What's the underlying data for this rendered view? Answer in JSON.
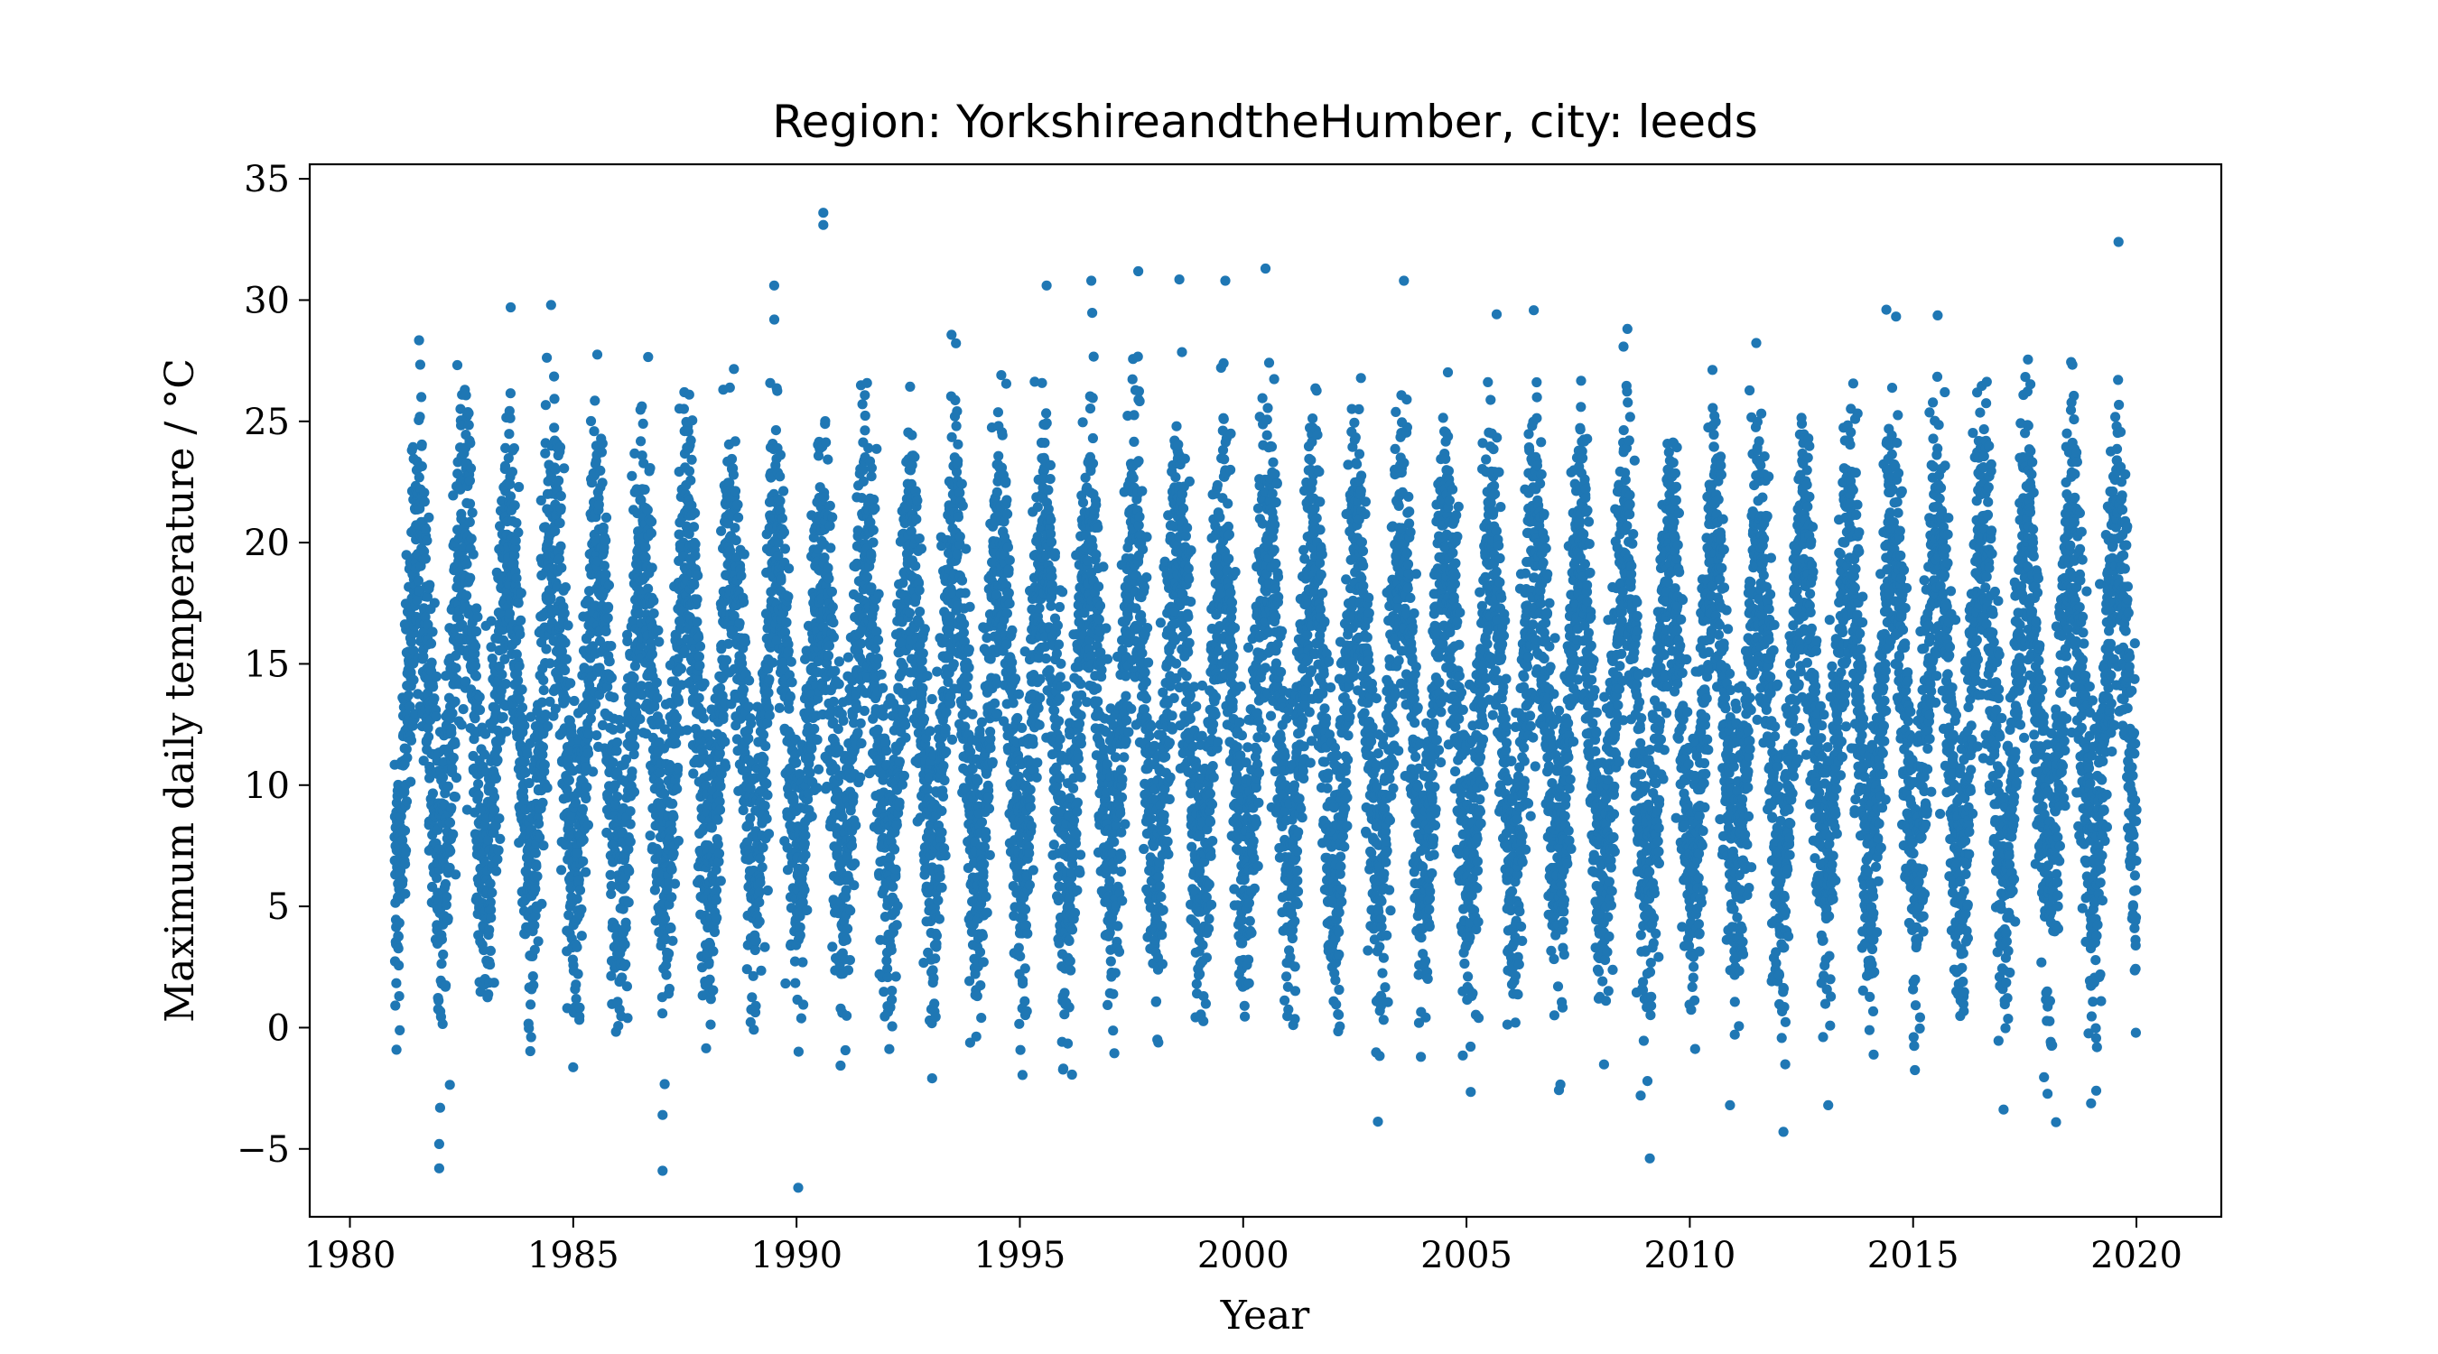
{
  "chart_data": {
    "type": "scatter",
    "title": "Region: YorkshireandtheHumber, city: leeds",
    "xlabel": "Year",
    "ylabel": "Maximum daily temperature / °C",
    "xlim": [
      1979.1,
      2021.9
    ],
    "ylim": [
      -7.8,
      35.6
    ],
    "x_ticks": [
      1980,
      1985,
      1990,
      1995,
      2000,
      2005,
      2010,
      2015,
      2020
    ],
    "y_ticks": [
      -5,
      0,
      5,
      10,
      15,
      20,
      25,
      30,
      35
    ],
    "x_tick_labels": [
      "1980",
      "1985",
      "1990",
      "1995",
      "2000",
      "2005",
      "2010",
      "2015",
      "2020"
    ],
    "y_tick_labels": [
      "−5",
      "0",
      "5",
      "10",
      "15",
      "20",
      "25",
      "30",
      "35"
    ],
    "grid": false,
    "legend": "none",
    "marker_color": "#1f77b4",
    "series": [
      {
        "x_start": 1981.0,
        "x_end": 2020.0,
        "seasonal_model": {
          "mean_c": 13.0,
          "amplitude_c": 7.0,
          "peak_day_of_year": 200,
          "noise_sd_c": 3.2
        },
        "extremes": [
          {
            "x": 1982.0,
            "y": -5.8
          },
          {
            "x": 1982.0,
            "y": -4.8
          },
          {
            "x": 1987.0,
            "y": -5.9
          },
          {
            "x": 1987.0,
            "y": -3.6
          },
          {
            "x": 1983.6,
            "y": 29.7
          },
          {
            "x": 1989.5,
            "y": 30.6
          },
          {
            "x": 1990.6,
            "y": 33.6
          },
          {
            "x": 1990.6,
            "y": 33.1
          },
          {
            "x": 1995.6,
            "y": 30.6
          },
          {
            "x": 1996.6,
            "y": 30.8
          },
          {
            "x": 1999.6,
            "y": 30.8
          },
          {
            "x": 2000.5,
            "y": 31.3
          },
          {
            "x": 2003.6,
            "y": 30.8
          },
          {
            "x": 2008.9,
            "y": -2.8
          },
          {
            "x": 2010.9,
            "y": -3.2
          },
          {
            "x": 2013.1,
            "y": -3.2
          },
          {
            "x": 2018.2,
            "y": -3.9
          },
          {
            "x": 2019.1,
            "y": -2.6
          },
          {
            "x": 2019.6,
            "y": 32.4
          }
        ]
      }
    ]
  }
}
